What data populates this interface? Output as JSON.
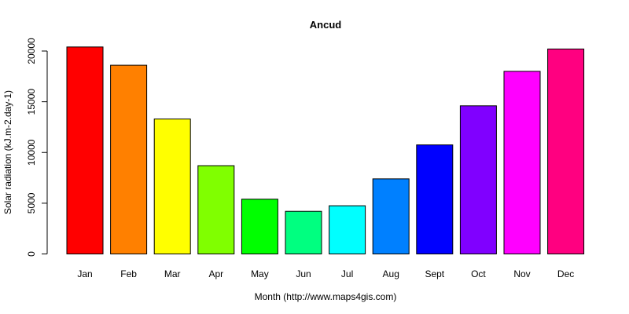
{
  "chart_data": {
    "type": "bar",
    "title": "Ancud",
    "xlabel": "Month (http://www.maps4gis.com)",
    "ylabel": "Solar radiation (kJ.m-2.day-1)",
    "ylim": [
      0,
      20000
    ],
    "yticks": [
      0,
      5000,
      10000,
      15000,
      20000
    ],
    "categories": [
      "Jan",
      "Feb",
      "Mar",
      "Apr",
      "May",
      "Jun",
      "Jul",
      "Aug",
      "Sept",
      "Oct",
      "Nov",
      "Dec"
    ],
    "values": [
      20400,
      18600,
      13300,
      8700,
      5400,
      4200,
      4750,
      7400,
      10750,
      14600,
      18000,
      20200
    ],
    "colors": [
      "#ff0000",
      "#ff8000",
      "#ffff00",
      "#80ff00",
      "#00ff00",
      "#00ff80",
      "#00ffff",
      "#0080ff",
      "#0000ff",
      "#8000ff",
      "#ff00ff",
      "#ff0080"
    ],
    "grid": false,
    "legend": "none"
  }
}
